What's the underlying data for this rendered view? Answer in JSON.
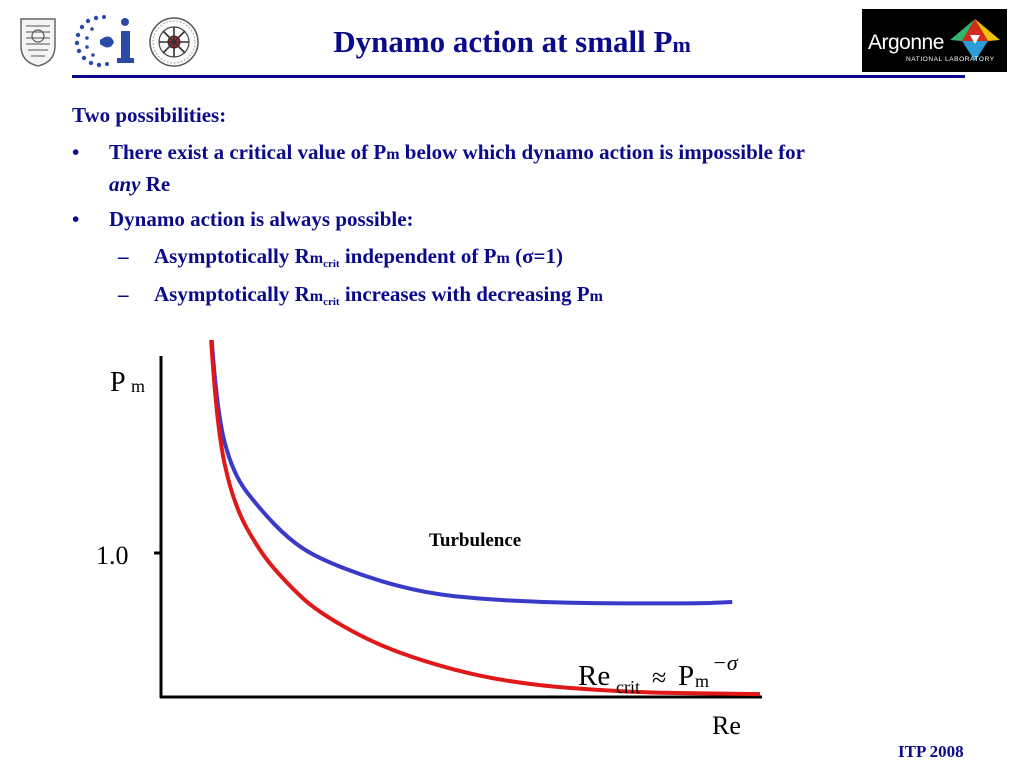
{
  "slide": {
    "title_main": "Dynamo action at small P",
    "title_sub": "m",
    "argonne_name": "Argonne",
    "argonne_tag": "NATIONAL LABORATORY",
    "footer": "ITP 2008"
  },
  "content": {
    "heading": "Two possibilities:",
    "bullet1_a": "There exist a critical value of P",
    "bullet1_m": "m",
    "bullet1_b": " below which dynamo action is impossible for",
    "bullet1_line2_italic": "any",
    "bullet1_line2_rest": " Re",
    "bullet2": "Dynamo action is always possible:",
    "sub1_a": "Asymptotically R",
    "sub1_m": "m",
    "sub1_crit": "crit",
    "sub1_b": " independent of P",
    "sub1_m2": "m",
    "sub1_c": " (σ=1)",
    "sub2_a": "Asymptotically R",
    "sub2_m": "m",
    "sub2_crit": "crit",
    "sub2_b": " increases with decreasing P",
    "sub2_m2": "m",
    "bullet_glyph": "•",
    "dash_glyph": "–"
  },
  "chart_data": {
    "type": "line",
    "ylabel_main": "P",
    "ylabel_sub": "m",
    "xlabel": "Re",
    "ytick": "1.0",
    "annotation": "Turbulence",
    "formula_re": "Re",
    "formula_crit": "crit",
    "formula_approx": "≈",
    "formula_p": "P",
    "formula_m": "m",
    "formula_exp": "−σ",
    "series": [
      {
        "color": "#3a3ac8",
        "description": "upper curve",
        "x": [
          0.0,
          0.02,
          0.05,
          0.1,
          0.15,
          0.2,
          0.3,
          0.4,
          0.5,
          0.6,
          0.7,
          0.8,
          0.9,
          1.0
        ],
        "y": [
          3.2,
          2.0,
          1.55,
          1.3,
          1.1,
          0.97,
          0.82,
          0.72,
          0.68,
          0.66,
          0.65,
          0.65,
          0.65,
          0.66
        ]
      },
      {
        "color": "#e01818",
        "description": "lower curve",
        "x": [
          0.0,
          0.02,
          0.05,
          0.1,
          0.15,
          0.2,
          0.3,
          0.4,
          0.5,
          0.6,
          0.7,
          0.8,
          0.9,
          1.0
        ],
        "y": [
          3.2,
          1.9,
          1.35,
          1.0,
          0.78,
          0.6,
          0.38,
          0.24,
          0.14,
          0.08,
          0.05,
          0.03,
          0.025,
          0.02
        ]
      }
    ]
  }
}
